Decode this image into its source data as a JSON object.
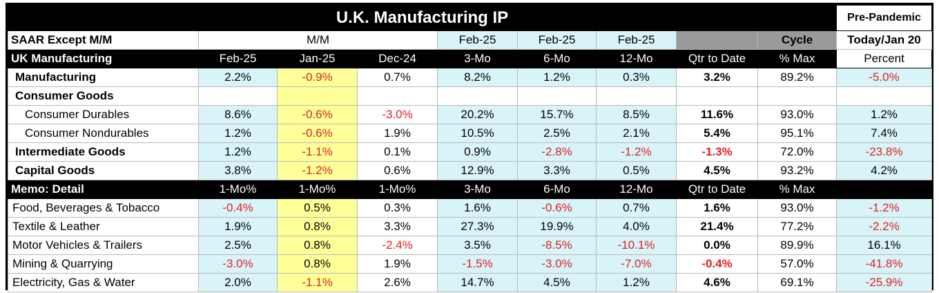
{
  "title": "U.K. Manufacturing IP",
  "pre_pandemic": "Pre-Pandemic",
  "header_row1": {
    "label": "SAAR Except M/M",
    "mm": "M/M",
    "c4": "Feb-25",
    "c5": "Feb-25",
    "c6": "Feb-25",
    "c7": "",
    "c8": "Cycle",
    "c9": "Today/Jan 20"
  },
  "header_row2": {
    "label": "UK Manufacturing",
    "cols": [
      "Feb-25",
      "Jan-25",
      "Dec-24",
      "3-Mo",
      "6-Mo",
      "12-Mo",
      "Qtr to Date",
      "% Max",
      "Percent"
    ]
  },
  "top_rows": [
    {
      "label": "Manufacturing",
      "style": "ind1",
      "values": [
        "2.2%",
        "-0.9%",
        "0.7%",
        "8.2%",
        "1.2%",
        "0.3%",
        "3.2%",
        "89.2%",
        "-5.0%"
      ]
    },
    {
      "label": "Consumer Goods",
      "style": "ind1",
      "values": [
        "",
        "",
        "",
        "",
        "",
        "",
        "",
        "",
        ""
      ]
    },
    {
      "label": "Consumer Durables",
      "style": "ind2",
      "values": [
        "8.6%",
        "-0.6%",
        "-3.0%",
        "20.2%",
        "15.7%",
        "8.5%",
        "11.6%",
        "93.0%",
        "1.2%"
      ]
    },
    {
      "label": "Consumer Nondurables",
      "style": "ind2",
      "values": [
        "1.2%",
        "-0.6%",
        "1.9%",
        "10.5%",
        "2.5%",
        "2.1%",
        "5.4%",
        "95.1%",
        "7.4%"
      ]
    },
    {
      "label": "Intermediate Goods",
      "style": "ind1",
      "values": [
        "1.2%",
        "-1.1%",
        "0.1%",
        "0.9%",
        "-2.8%",
        "-1.2%",
        "-1.3%",
        "72.0%",
        "-23.8%"
      ]
    },
    {
      "label": "Capital Goods",
      "style": "ind1",
      "values": [
        "3.8%",
        "-1.2%",
        "0.6%",
        "12.9%",
        "3.3%",
        "0.5%",
        "4.5%",
        "93.2%",
        "4.2%"
      ]
    }
  ],
  "memo_header": {
    "label": "Memo: Detail",
    "cols": [
      "1-Mo%",
      "1-Mo%",
      "1-Mo%",
      "3-Mo",
      "6-Mo",
      "12-Mo",
      "Qtr to Date",
      "% Max",
      ""
    ]
  },
  "memo_rows": [
    {
      "label": "Food, Beverages & Tobacco",
      "values": [
        "-0.4%",
        "0.5%",
        "0.3%",
        "1.6%",
        "-0.6%",
        "0.7%",
        "1.6%",
        "93.0%",
        "-1.2%"
      ]
    },
    {
      "label": "Textile & Leather",
      "values": [
        "1.9%",
        "0.8%",
        "3.3%",
        "27.3%",
        "19.9%",
        "4.0%",
        "21.4%",
        "77.2%",
        "-2.2%"
      ]
    },
    {
      "label": "Motor Vehicles & Trailers",
      "values": [
        "2.5%",
        "0.8%",
        "-2.4%",
        "3.5%",
        "-8.5%",
        "-10.1%",
        "0.0%",
        "89.9%",
        "16.1%"
      ]
    },
    {
      "label": "Mining & Quarrying",
      "values": [
        "-3.0%",
        "0.8%",
        "1.9%",
        "-1.5%",
        "-3.0%",
        "-7.0%",
        "-0.4%",
        "57.0%",
        "-41.8%"
      ]
    },
    {
      "label": "Electricity, Gas & Water",
      "values": [
        "2.0%",
        "-1.1%",
        "2.6%",
        "14.7%",
        "4.5%",
        "1.2%",
        "4.6%",
        "69.1%",
        "-25.9%"
      ]
    }
  ],
  "colors": {
    "negative": "#e02020",
    "cyan_fill": "#d8f4f8",
    "yellow_fill": "#ffff99",
    "header_black": "#000000",
    "gray_fill": "#9a9a9a"
  }
}
